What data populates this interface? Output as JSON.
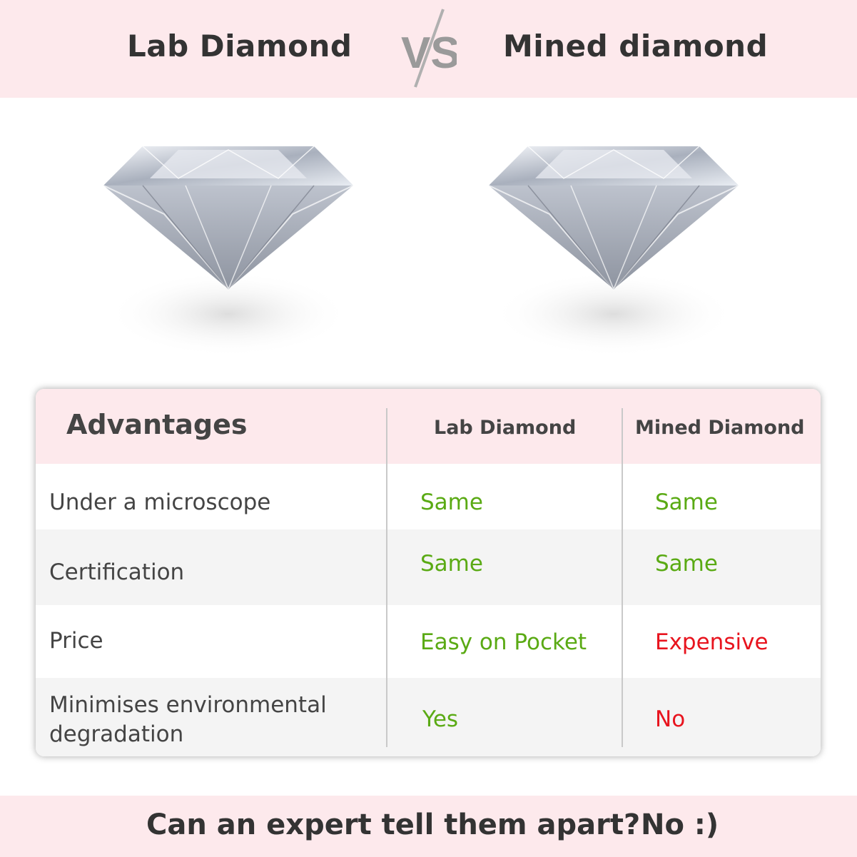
{
  "header": {
    "left_title": "Lab Diamond",
    "vs_label": "VS",
    "right_title": "Mined diamond"
  },
  "images": [
    {
      "name": "lab-diamond-image"
    },
    {
      "name": "mined-diamond-image"
    }
  ],
  "table": {
    "headers": [
      "Advantages",
      "Lab Diamond",
      "Mined Diamond"
    ],
    "rows": [
      {
        "label": "Under a microscope",
        "lab": "Same",
        "mined": "Same"
      },
      {
        "label": "Certification",
        "lab": "Same",
        "mined": "Same"
      },
      {
        "label": "Price",
        "lab": "Easy on Pocket",
        "mined": "Expensive"
      },
      {
        "label": "Minimises environmental degradation",
        "lab": "Yes",
        "mined": "No"
      }
    ]
  },
  "footer": {
    "question": "Can an expert tell them apart?",
    "answer": "No :)"
  },
  "colors": {
    "band": "#fde9ec",
    "positive": "#5aaa14",
    "negative": "#e8141e",
    "text": "#444444"
  }
}
